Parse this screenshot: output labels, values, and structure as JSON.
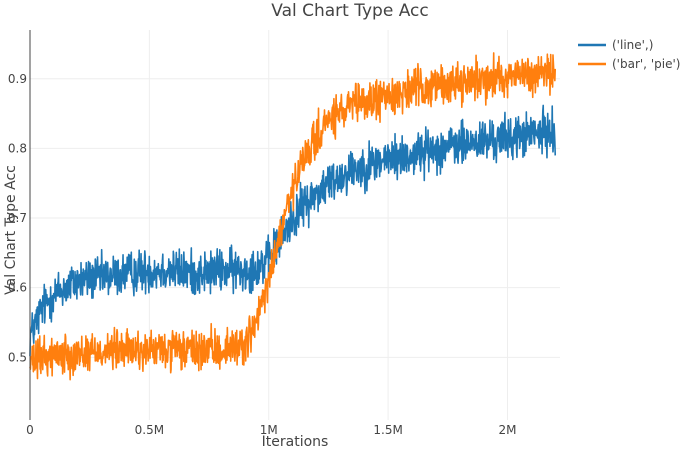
{
  "chart_data": {
    "type": "line",
    "title": "Val Chart Type Acc",
    "xlabel": "Iterations",
    "ylabel": "Val Chart Type Acc",
    "xlim": [
      0,
      2220000
    ],
    "ylim": [
      0.41,
      0.97
    ],
    "x_ticks": [
      {
        "value": 0,
        "label": "0"
      },
      {
        "value": 500000,
        "label": "0.5M"
      },
      {
        "value": 1000000,
        "label": "1M"
      },
      {
        "value": 1500000,
        "label": "1.5M"
      },
      {
        "value": 2000000,
        "label": "2M"
      }
    ],
    "y_ticks": [
      {
        "value": 0.5,
        "label": "0.5"
      },
      {
        "value": 0.6,
        "label": "0.6"
      },
      {
        "value": 0.7,
        "label": "0.7"
      },
      {
        "value": 0.8,
        "label": "0.8"
      },
      {
        "value": 0.9,
        "label": "0.9"
      }
    ],
    "grid": true,
    "legend_position": "top-right",
    "x": [
      0,
      50000,
      100000,
      200000,
      300000,
      400000,
      500000,
      600000,
      700000,
      800000,
      900000,
      950000,
      1000000,
      1050000,
      1100000,
      1150000,
      1200000,
      1250000,
      1300000,
      1350000,
      1400000,
      1500000,
      1600000,
      1700000,
      1800000,
      1900000,
      2000000,
      2100000,
      2200000
    ],
    "series": [
      {
        "name": "('line',)",
        "color": "#1f77b4",
        "values": [
          0.53,
          0.57,
          0.59,
          0.61,
          0.615,
          0.62,
          0.625,
          0.625,
          0.62,
          0.625,
          0.625,
          0.63,
          0.64,
          0.67,
          0.7,
          0.72,
          0.735,
          0.75,
          0.76,
          0.77,
          0.775,
          0.785,
          0.79,
          0.8,
          0.805,
          0.81,
          0.815,
          0.82,
          0.825
        ]
      },
      {
        "name": "('bar', 'pie')",
        "color": "#ff7f0e",
        "values": [
          0.49,
          0.5,
          0.505,
          0.505,
          0.51,
          0.51,
          0.51,
          0.51,
          0.51,
          0.51,
          0.52,
          0.55,
          0.61,
          0.68,
          0.74,
          0.785,
          0.815,
          0.84,
          0.85,
          0.86,
          0.865,
          0.875,
          0.885,
          0.89,
          0.895,
          0.9,
          0.905,
          0.905,
          0.91
        ]
      }
    ]
  }
}
